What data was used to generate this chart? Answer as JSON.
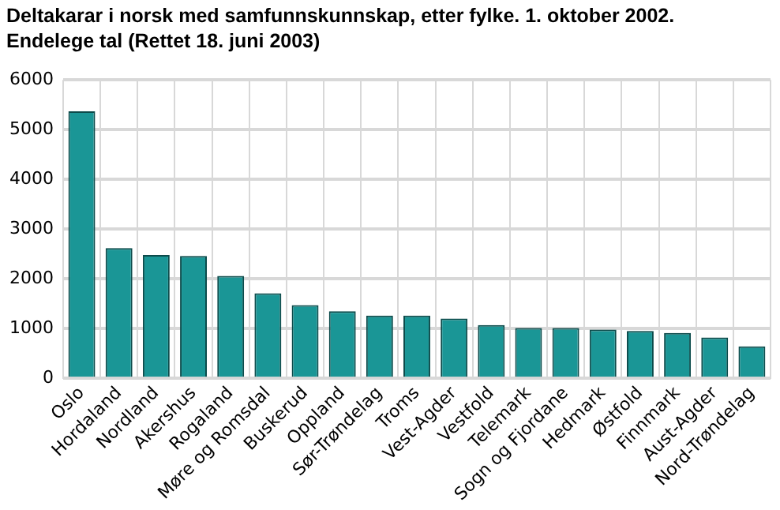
{
  "chart_data": {
    "type": "bar",
    "title": "Deltakarar i norsk med samfunnskunnskap, etter fylke. 1. oktober 2002.\nEndelege tal (Rettet 18. juni 2003)",
    "categories": [
      "Oslo",
      "Hordaland",
      "Nordland",
      "Akershus",
      "Rogaland",
      "Møre og Romsdal",
      "Buskerud",
      "Oppland",
      "Sør-Trøndelag",
      "Troms",
      "Vest-Agder",
      "Vestfold",
      "Telemark",
      "Sogn og Fjordane",
      "Hedmark",
      "Østfold",
      "Finnmark",
      "Aust-Agder",
      "Nord-Trøndelag"
    ],
    "values": [
      5370,
      2620,
      2480,
      2460,
      2060,
      1710,
      1470,
      1350,
      1260,
      1260,
      1200,
      1070,
      1010,
      1010,
      980,
      950,
      910,
      820,
      640
    ],
    "color": "#1a9696",
    "ylim": [
      0,
      6000
    ],
    "yticks": [
      0,
      1000,
      2000,
      3000,
      4000,
      5000,
      6000
    ],
    "grid": true,
    "legend": false
  }
}
